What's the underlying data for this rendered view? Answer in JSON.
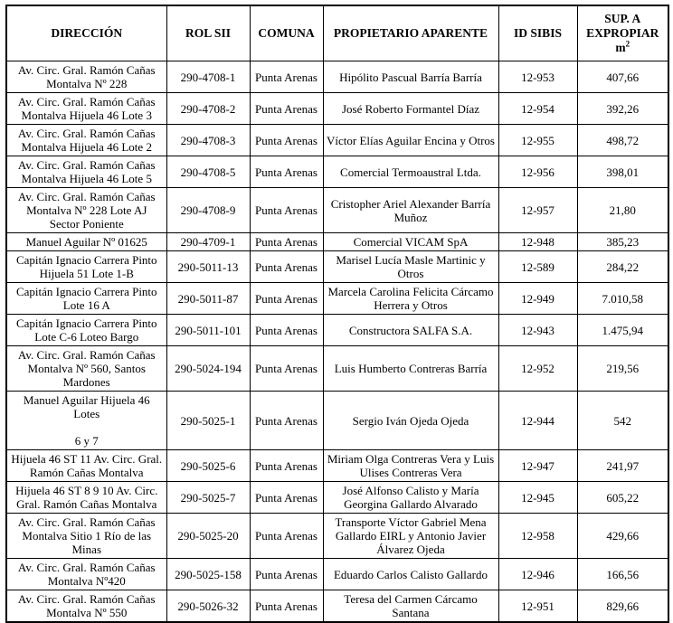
{
  "table": {
    "columns": [
      {
        "label": "DIRECCIÓN"
      },
      {
        "label": "ROL SII"
      },
      {
        "label": "COMUNA"
      },
      {
        "label": "PROPIETARIO APARENTE"
      },
      {
        "label": "ID SIBIS"
      },
      {
        "label": "SUP. A EXPROPIAR",
        "unit": "m",
        "unit_exp": "2"
      }
    ],
    "rows": [
      [
        "Av. Circ. Gral. Ramón Cañas Montalva Nº 228",
        "290-4708-1",
        "Punta Arenas",
        "Hipólito Pascual Barría Barría",
        "12-953",
        "407,66"
      ],
      [
        "Av. Circ. Gral. Ramón Cañas Montalva Hijuela 46 Lote 3",
        "290-4708-2",
        "Punta Arenas",
        "José Roberto Formantel Díaz",
        "12-954",
        "392,26"
      ],
      [
        "Av. Circ. Gral. Ramón Cañas Montalva Hijuela 46 Lote 2",
        "290-4708-3",
        "Punta Arenas",
        "Víctor Elías Aguilar Encina y Otros",
        "12-955",
        "498,72"
      ],
      [
        "Av. Circ. Gral. Ramón Cañas Montalva Hijuela 46 Lote 5",
        "290-4708-5",
        "Punta Arenas",
        "Comercial Termoaustral Ltda.",
        "12-956",
        "398,01"
      ],
      [
        "Av. Circ. Gral. Ramón Cañas Montalva Nº 228 Lote AJ Sector Poniente",
        "290-4708-9",
        "Punta Arenas",
        "Cristopher Ariel Alexander Barría Muñoz",
        "12-957",
        "21,80"
      ],
      [
        "Manuel Aguilar Nº 01625",
        "290-4709-1",
        "Punta Arenas",
        "Comercial VICAM SpA",
        "12-948",
        "385,23"
      ],
      [
        "Capitán Ignacio Carrera Pinto Hijuela 51 Lote 1-B",
        "290-5011-13",
        "Punta Arenas",
        "Marisel Lucía Masle Martinic y Otros",
        "12-589",
        "284,22"
      ],
      [
        "Capitán Ignacio Carrera Pinto Lote 16 A",
        "290-5011-87",
        "Punta Arenas",
        "Marcela Carolina Felicita Cárcamo Herrera y Otros",
        "12-949",
        "7.010,58"
      ],
      [
        "Capitán Ignacio Carrera Pinto Lote C-6 Loteo Bargo",
        "290-5011-101",
        "Punta Arenas",
        "Constructora SALFA S.A.",
        "12-943",
        "1.475,94"
      ],
      [
        "Av. Circ. Gral. Ramón Cañas Montalva Nº 560, Santos Mardones",
        "290-5024-194",
        "Punta Arenas",
        "Luis Humberto Contreras Barría",
        "12-952",
        "219,56"
      ],
      [
        "Manuel Aguilar Hijuela 46 Lotes\n\n6 y 7",
        "290-5025-1",
        "Punta Arenas",
        "Sergio Iván Ojeda Ojeda",
        "12-944",
        "542"
      ],
      [
        "Hijuela 46 ST 11 Av. Circ. Gral. Ramón Cañas Montalva",
        "290-5025-6",
        "Punta Arenas",
        "Miriam Olga Contreras Vera y Luis Ulises Contreras Vera",
        "12-947",
        "241,97"
      ],
      [
        "Hijuela 46 ST 8 9 10 Av. Circ. Gral. Ramón Cañas Montalva",
        "290-5025-7",
        "Punta Arenas",
        "José Alfonso Calisto y María Georgina Gallardo Alvarado",
        "12-945",
        "605,22"
      ],
      [
        "Av. Circ. Gral. Ramón Cañas Montalva Sitio 1 Río de las Minas",
        "290-5025-20",
        "Punta Arenas",
        "Transporte Víctor Gabriel Mena Gallardo EIRL y Antonio Javier Álvarez Ojeda",
        "12-958",
        "429,66"
      ],
      [
        "Av. Circ. Gral. Ramón Cañas Montalva Nº420",
        "290-5025-158",
        "Punta Arenas",
        "Eduardo Carlos Calisto Gallardo",
        "12-946",
        "166,56"
      ],
      [
        "Av. Circ. Gral. Ramón Cañas Montalva Nº 550",
        "290-5026-32",
        "Punta Arenas",
        "Teresa del Carmen Cárcamo Santana",
        "12-951",
        "829,66"
      ]
    ]
  }
}
